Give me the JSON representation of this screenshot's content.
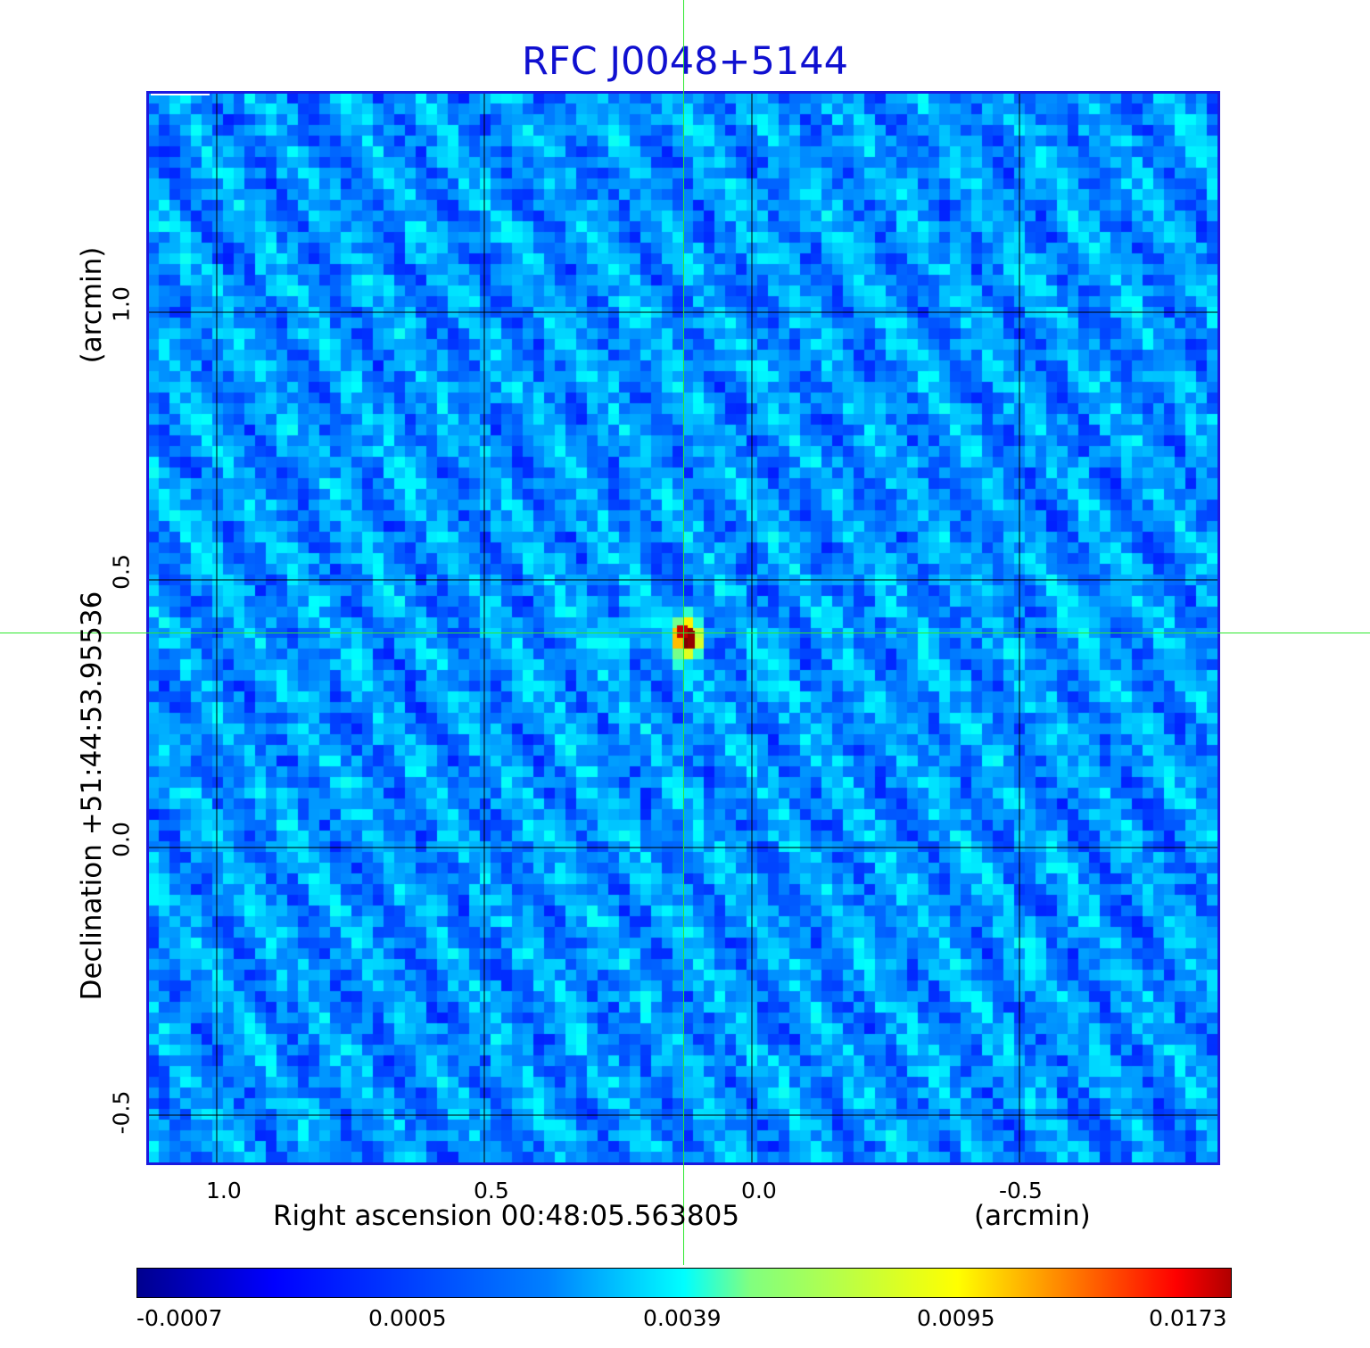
{
  "title": "RFC J0048+5144",
  "x_axis": {
    "label": "Right ascension  00:48:05.563805",
    "unit": "(arcmin)",
    "ticks": [
      "1.0",
      "0.5",
      "0.0",
      "-0.5"
    ]
  },
  "y_axis": {
    "label": "Declination  +51:44:53.95536",
    "unit": "(arcmin)",
    "ticks": [
      "1.0",
      "0.5",
      "0.0",
      "-0.5"
    ]
  },
  "colorbar": {
    "colormap": "jet",
    "ticks": [
      "-0.0007",
      "0.0005",
      "0.0039",
      "0.0095",
      "0.0173"
    ]
  },
  "colors": {
    "title": "#1010d0",
    "frame": "#1a1adf",
    "crosshair": "#2ee82e",
    "grid": "#000000"
  }
}
